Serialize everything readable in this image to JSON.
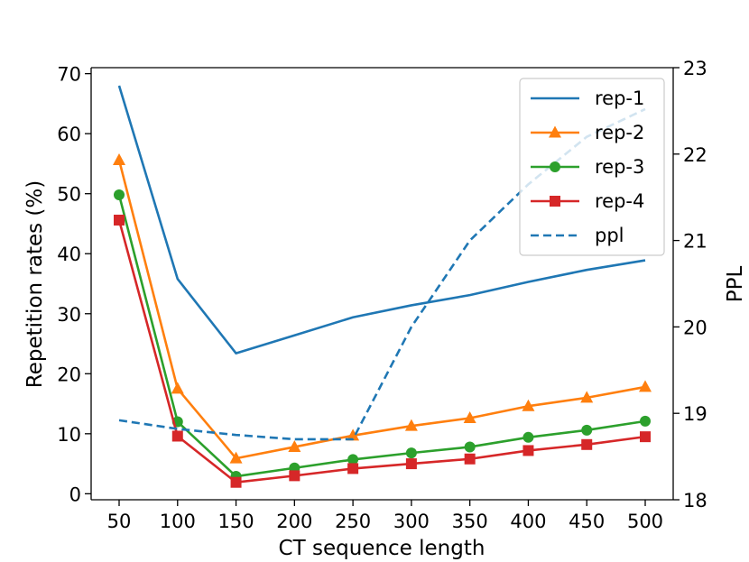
{
  "chart_data": {
    "type": "line",
    "title": "",
    "xlabel": "CT sequence length",
    "ylabel": "Repetition rates (%)",
    "y2label": "PPL",
    "x": [
      50,
      100,
      150,
      200,
      250,
      300,
      350,
      400,
      450,
      500
    ],
    "ylim": [
      -1,
      71
    ],
    "y2lim": [
      18,
      23
    ],
    "yticks": [
      0,
      10,
      20,
      30,
      40,
      50,
      60,
      70
    ],
    "y2ticks": [
      18,
      19,
      20,
      21,
      22,
      23
    ],
    "legend_position": "top-right",
    "series": [
      {
        "name": "rep-1",
        "axis": "left",
        "color": "#1f77b4",
        "style": "solid",
        "marker": "none",
        "values": [
          68.0,
          35.8,
          23.4,
          26.4,
          29.4,
          31.4,
          33.1,
          35.3,
          37.3,
          38.9
        ]
      },
      {
        "name": "rep-2",
        "axis": "left",
        "color": "#ff7f0e",
        "style": "solid",
        "marker": "triangle",
        "values": [
          55.6,
          17.5,
          5.9,
          7.8,
          9.7,
          11.3,
          12.6,
          14.6,
          16.0,
          17.8
        ]
      },
      {
        "name": "rep-3",
        "axis": "left",
        "color": "#2ca02c",
        "style": "solid",
        "marker": "circle",
        "values": [
          49.8,
          12.0,
          2.9,
          4.3,
          5.7,
          6.8,
          7.8,
          9.4,
          10.6,
          12.1
        ]
      },
      {
        "name": "rep-4",
        "axis": "left",
        "color": "#d62728",
        "style": "solid",
        "marker": "square",
        "values": [
          45.6,
          9.6,
          1.9,
          3.0,
          4.2,
          5.0,
          5.8,
          7.2,
          8.2,
          9.5
        ]
      },
      {
        "name": "ppl",
        "axis": "right",
        "color": "#1f77b4",
        "style": "dashed",
        "marker": "none",
        "values": [
          18.92,
          18.82,
          18.75,
          18.7,
          18.7,
          20.0,
          21.0,
          21.65,
          22.2,
          22.52
        ]
      }
    ]
  }
}
